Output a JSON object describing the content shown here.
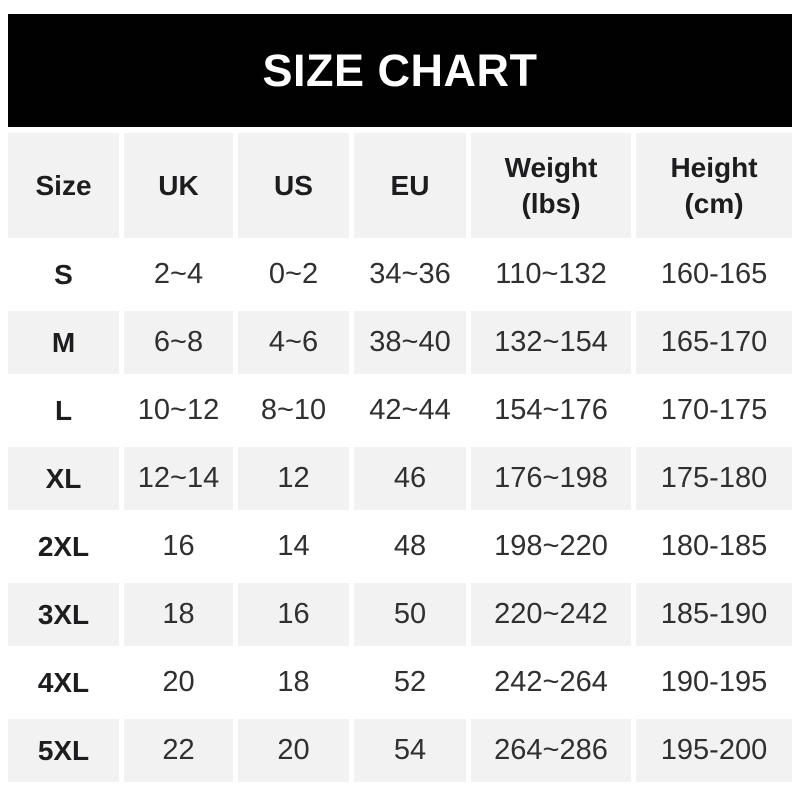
{
  "banner": {
    "title": "SIZE CHART",
    "bg_color": "#010101",
    "text_color": "#ffffff"
  },
  "colors": {
    "stripe": "#f2f2f2",
    "row_alt": "#ffffff",
    "header_text": "#1d1d1f",
    "value_text": "#303030"
  },
  "chart_data": {
    "type": "table",
    "title": "SIZE CHART",
    "columns": [
      {
        "key": "size",
        "label": "Size"
      },
      {
        "key": "uk",
        "label": "UK"
      },
      {
        "key": "us",
        "label": "US"
      },
      {
        "key": "eu",
        "label": "EU"
      },
      {
        "key": "weight",
        "label": "Weight",
        "sublabel": "(lbs)"
      },
      {
        "key": "height",
        "label": "Height",
        "sublabel": "(cm)"
      }
    ],
    "rows": [
      {
        "size": "S",
        "uk": "2~4",
        "us": "0~2",
        "eu": "34~36",
        "weight": "110~132",
        "height": "160-165"
      },
      {
        "size": "M",
        "uk": "6~8",
        "us": "4~6",
        "eu": "38~40",
        "weight": "132~154",
        "height": "165-170"
      },
      {
        "size": "L",
        "uk": "10~12",
        "us": "8~10",
        "eu": "42~44",
        "weight": "154~176",
        "height": "170-175"
      },
      {
        "size": "XL",
        "uk": "12~14",
        "us": "12",
        "eu": "46",
        "weight": "176~198",
        "height": "175-180"
      },
      {
        "size": "2XL",
        "uk": "16",
        "us": "14",
        "eu": "48",
        "weight": "198~220",
        "height": "180-185"
      },
      {
        "size": "3XL",
        "uk": "18",
        "us": "16",
        "eu": "50",
        "weight": "220~242",
        "height": "185-190"
      },
      {
        "size": "4XL",
        "uk": "20",
        "us": "18",
        "eu": "52",
        "weight": "242~264",
        "height": "190-195"
      },
      {
        "size": "5XL",
        "uk": "22",
        "us": "20",
        "eu": "54",
        "weight": "264~286",
        "height": "195-200"
      }
    ]
  }
}
